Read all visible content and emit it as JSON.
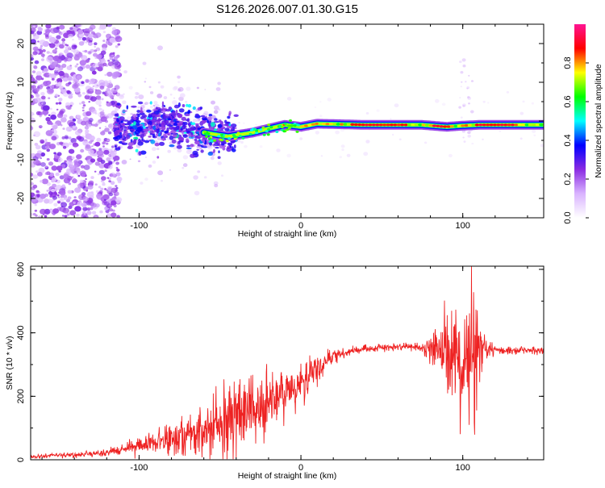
{
  "title": "S126.2026.007.01.30.G15",
  "colors": {
    "snr_line": "#ee2222",
    "scale": [
      "#ffffff",
      "#d9b3ff",
      "#8a2be2",
      "#0000ff",
      "#00ffff",
      "#00ff00",
      "#ffff00",
      "#ff0000",
      "#ff1493"
    ]
  },
  "chart_data": [
    {
      "type": "heatmap",
      "name": "spectrogram",
      "xlabel": "Height of straight line (km)",
      "ylabel": "Frequency (Hz)",
      "xlim": [
        -167,
        150
      ],
      "ylim": [
        -25,
        25
      ],
      "xticks": [
        -100,
        0,
        100
      ],
      "xtick_labels": [
        "-100",
        "0",
        "100"
      ],
      "yticks": [
        20,
        10,
        0,
        -10,
        -20
      ],
      "ytick_labels": [
        "20",
        "10",
        "0",
        "-10",
        "-20"
      ],
      "colorbar": {
        "label": "Normalized spectral amplitude",
        "range": [
          0.0,
          1.0
        ],
        "ticks": [
          0.0,
          0.2,
          0.4,
          0.6,
          0.8
        ],
        "tick_labels": [
          "0.0",
          "0.2",
          "0.4",
          "0.6",
          "0.8"
        ]
      },
      "ridge": {
        "description": "main spectral line",
        "points": [
          [
            -115,
            -3
          ],
          [
            -100,
            -1.5
          ],
          [
            -80,
            -1
          ],
          [
            -60,
            -3
          ],
          [
            -45,
            -4
          ],
          [
            -30,
            -3
          ],
          [
            -20,
            -2
          ],
          [
            -10,
            -1
          ],
          [
            0,
            -1.5
          ],
          [
            10,
            -0.7
          ],
          [
            20,
            -0.8
          ],
          [
            40,
            -1
          ],
          [
            60,
            -1
          ],
          [
            75,
            -1
          ],
          [
            90,
            -1.5
          ],
          [
            100,
            -1.2
          ],
          [
            110,
            -1
          ],
          [
            130,
            -1
          ],
          [
            150,
            -1
          ]
        ]
      }
    },
    {
      "type": "line",
      "name": "snr",
      "xlabel": "Height of straight line (km)",
      "ylabel": "SNR (10 * v/v)",
      "xlim": [
        -167,
        150
      ],
      "ylim": [
        0,
        610
      ],
      "xticks": [
        -100,
        0,
        100
      ],
      "xtick_labels": [
        "-100",
        "0",
        "100"
      ],
      "yticks": [
        0,
        200,
        400,
        600
      ],
      "ytick_labels": [
        "0",
        "200",
        "400",
        "600"
      ],
      "envelope": {
        "x": [
          -167,
          -140,
          -120,
          -108,
          -100,
          -90,
          -80,
          -70,
          -60,
          -50,
          -40,
          -30,
          -20,
          -10,
          0,
          10,
          20,
          30,
          40,
          60,
          75,
          85,
          90,
          95,
          100,
          104,
          108,
          112,
          120,
          150
        ],
        "mean": [
          10,
          15,
          22,
          35,
          45,
          55,
          65,
          80,
          95,
          120,
          145,
          165,
          190,
          210,
          235,
          280,
          330,
          340,
          350,
          355,
          355,
          350,
          345,
          330,
          310,
          300,
          320,
          340,
          345,
          345
        ],
        "spread": [
          5,
          6,
          8,
          15,
          22,
          30,
          40,
          45,
          55,
          80,
          95,
          95,
          85,
          70,
          55,
          35,
          15,
          10,
          8,
          8,
          10,
          60,
          110,
          140,
          150,
          200,
          170,
          40,
          10,
          10
        ]
      }
    }
  ]
}
